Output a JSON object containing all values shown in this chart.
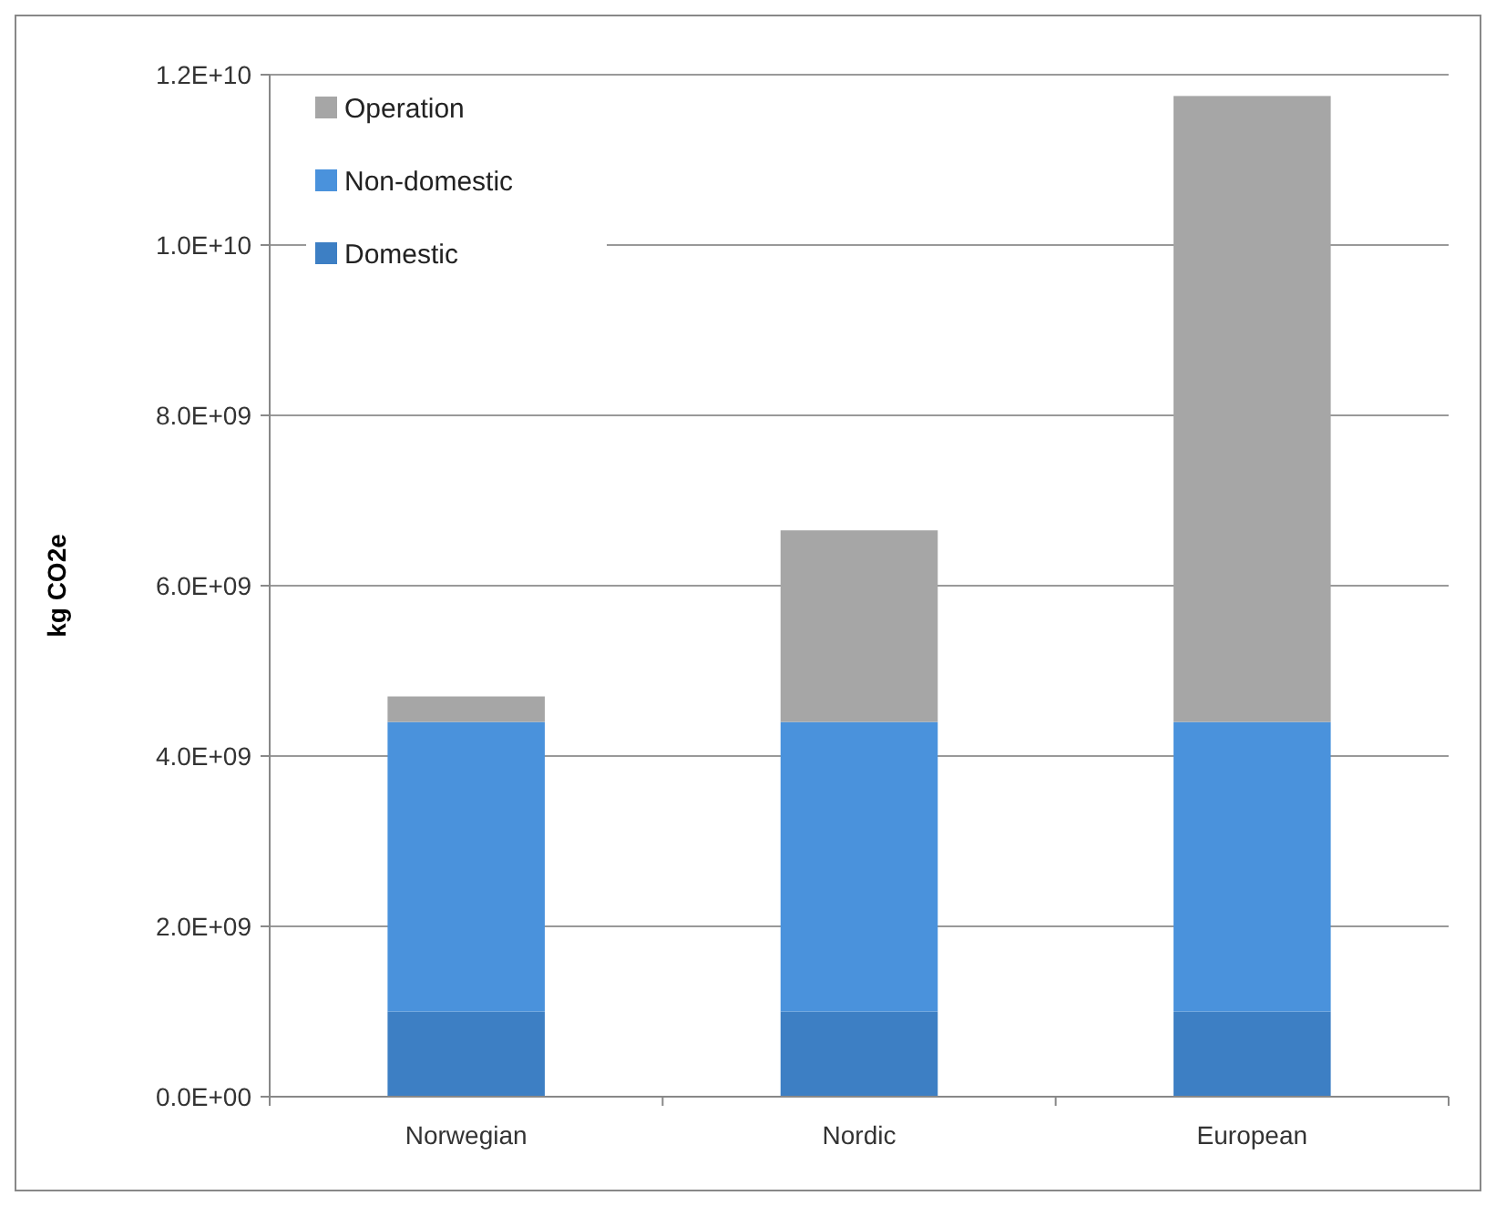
{
  "chart_data": {
    "type": "bar",
    "stacked": true,
    "ylabel": "kg CO2e",
    "categories": [
      "Norwegian",
      "Nordic",
      "European"
    ],
    "series": [
      {
        "name": "Domestic",
        "color": "#3d7fc4",
        "values": [
          1000000000.0,
          1000000000.0,
          1000000000.0
        ]
      },
      {
        "name": "Non-domestic",
        "color": "#4a92dc",
        "values": [
          3400000000.0,
          3400000000.0,
          3400000000.0
        ]
      },
      {
        "name": "Operation",
        "color": "#a6a6a6",
        "values": [
          300000000.0,
          2250000000.0,
          7350000000.0
        ]
      }
    ],
    "ylim": [
      0,
      12000000000.0
    ],
    "yticks": [
      {
        "value": 0,
        "label": "0.0E+00"
      },
      {
        "value": 2000000000.0,
        "label": "2.0E+09"
      },
      {
        "value": 4000000000.0,
        "label": "4.0E+09"
      },
      {
        "value": 6000000000.0,
        "label": "6.0E+09"
      },
      {
        "value": 8000000000.0,
        "label": "8.0E+09"
      },
      {
        "value": 10000000000.0,
        "label": "1.0E+10"
      },
      {
        "value": 12000000000.0,
        "label": "1.2E+10"
      }
    ],
    "grid": "y",
    "legend": "top left"
  }
}
